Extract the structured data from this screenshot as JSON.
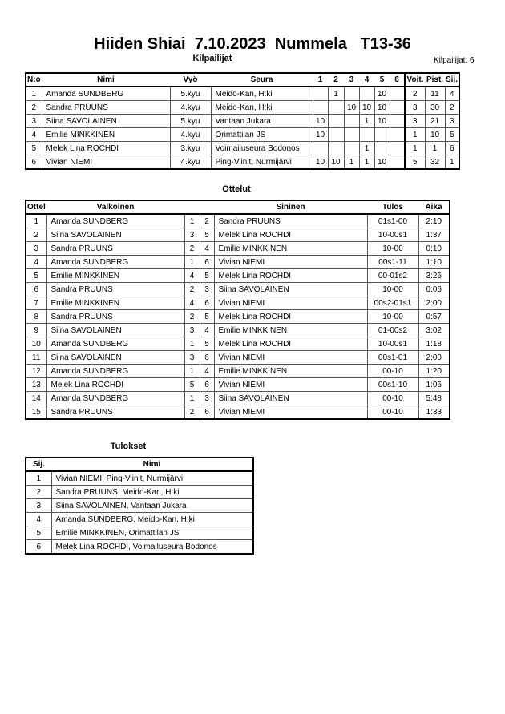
{
  "title": "Hiiden Shiai  7.10.2023  Nummela   T13-36",
  "competitors_section": {
    "heading": "Kilpailijat",
    "count_label": "Kilpailijat: 6",
    "headers": [
      "N:o",
      "Nimi",
      "Vyö",
      "Seura",
      "1",
      "2",
      "3",
      "4",
      "5",
      "6",
      "Voit.",
      "Pist.",
      "Sij."
    ],
    "rows": [
      {
        "no": "1",
        "name": "Amanda SUNDBERG",
        "belt": "5.kyu",
        "club": "Meido-Kan, H:ki",
        "scores": [
          "",
          "1",
          "",
          "",
          "10",
          ""
        ],
        "wins": "2",
        "points": "11",
        "rank": "4"
      },
      {
        "no": "2",
        "name": "Sandra PRUUNS",
        "belt": "4.kyu",
        "club": "Meido-Kan, H:ki",
        "scores": [
          "",
          "",
          "10",
          "10",
          "10",
          ""
        ],
        "wins": "3",
        "points": "30",
        "rank": "2"
      },
      {
        "no": "3",
        "name": "Siina SAVOLAINEN",
        "belt": "5.kyu",
        "club": "Vantaan Jukara",
        "scores": [
          "10",
          "",
          "",
          "1",
          "10",
          ""
        ],
        "wins": "3",
        "points": "21",
        "rank": "3"
      },
      {
        "no": "4",
        "name": "Emilie MINKKINEN",
        "belt": "4.kyu",
        "club": "Orimattilan JS",
        "scores": [
          "10",
          "",
          "",
          "",
          "",
          ""
        ],
        "wins": "1",
        "points": "10",
        "rank": "5"
      },
      {
        "no": "5",
        "name": "Melek Lina ROCHDI",
        "belt": "3.kyu",
        "club": "Voimailuseura Bodonos",
        "scores": [
          "",
          "",
          "",
          "1",
          "",
          ""
        ],
        "wins": "1",
        "points": "1",
        "rank": "6"
      },
      {
        "no": "6",
        "name": "Vivian NIEMI",
        "belt": "4.kyu",
        "club": "Ping-Viinit, Nurmijärvi",
        "scores": [
          "10",
          "10",
          "1",
          "1",
          "10",
          ""
        ],
        "wins": "5",
        "points": "32",
        "rank": "1"
      }
    ]
  },
  "bouts_section": {
    "heading": "Ottelut",
    "headers": {
      "bout": "Ottelu",
      "white": "Valkoinen",
      "blue": "Sininen",
      "result": "Tulos",
      "time": "Aika"
    },
    "rows": [
      {
        "no": "1",
        "white": "Amanda SUNDBERG",
        "wn": "1",
        "bn": "2",
        "blue": "Sandra PRUUNS",
        "result": "01s1-00",
        "time": "2:10"
      },
      {
        "no": "2",
        "white": "Siina SAVOLAINEN",
        "wn": "3",
        "bn": "5",
        "blue": "Melek Lina ROCHDI",
        "result": "10-00s1",
        "time": "1:37"
      },
      {
        "no": "3",
        "white": "Sandra PRUUNS",
        "wn": "2",
        "bn": "4",
        "blue": "Emilie MINKKINEN",
        "result": "10-00",
        "time": "0:10"
      },
      {
        "no": "4",
        "white": "Amanda SUNDBERG",
        "wn": "1",
        "bn": "6",
        "blue": "Vivian NIEMI",
        "result": "00s1-11",
        "time": "1:10"
      },
      {
        "no": "5",
        "white": "Emilie MINKKINEN",
        "wn": "4",
        "bn": "5",
        "blue": "Melek Lina ROCHDI",
        "result": "00-01s2",
        "time": "3:26"
      },
      {
        "no": "6",
        "white": "Sandra PRUUNS",
        "wn": "2",
        "bn": "3",
        "blue": "Siina SAVOLAINEN",
        "result": "10-00",
        "time": "0:06"
      },
      {
        "no": "7",
        "white": "Emilie MINKKINEN",
        "wn": "4",
        "bn": "6",
        "blue": "Vivian NIEMI",
        "result": "00s2-01s1",
        "time": "2:00"
      },
      {
        "no": "8",
        "white": "Sandra PRUUNS",
        "wn": "2",
        "bn": "5",
        "blue": "Melek Lina ROCHDI",
        "result": "10-00",
        "time": "0:57"
      },
      {
        "no": "9",
        "white": "Siina SAVOLAINEN",
        "wn": "3",
        "bn": "4",
        "blue": "Emilie MINKKINEN",
        "result": "01-00s2",
        "time": "3:02"
      },
      {
        "no": "10",
        "white": "Amanda SUNDBERG",
        "wn": "1",
        "bn": "5",
        "blue": "Melek Lina ROCHDI",
        "result": "10-00s1",
        "time": "1:18"
      },
      {
        "no": "11",
        "white": "Siina SAVOLAINEN",
        "wn": "3",
        "bn": "6",
        "blue": "Vivian NIEMI",
        "result": "00s1-01",
        "time": "2:00"
      },
      {
        "no": "12",
        "white": "Amanda SUNDBERG",
        "wn": "1",
        "bn": "4",
        "blue": "Emilie MINKKINEN",
        "result": "00-10",
        "time": "1:20"
      },
      {
        "no": "13",
        "white": "Melek Lina ROCHDI",
        "wn": "5",
        "bn": "6",
        "blue": "Vivian NIEMI",
        "result": "00s1-10",
        "time": "1:06"
      },
      {
        "no": "14",
        "white": "Amanda SUNDBERG",
        "wn": "1",
        "bn": "3",
        "blue": "Siina SAVOLAINEN",
        "result": "00-10",
        "time": "5:48"
      },
      {
        "no": "15",
        "white": "Sandra PRUUNS",
        "wn": "2",
        "bn": "6",
        "blue": "Vivian NIEMI",
        "result": "00-10",
        "time": "1:33"
      }
    ]
  },
  "results_section": {
    "heading": "Tulokset",
    "headers": {
      "rank": "Sij.",
      "name": "Nimi"
    },
    "rows": [
      {
        "rank": "1",
        "name": "Vivian NIEMI, Ping-Viinit, Nurmijärvi"
      },
      {
        "rank": "2",
        "name": "Sandra PRUUNS, Meido-Kan, H:ki"
      },
      {
        "rank": "3",
        "name": "Siina SAVOLAINEN, Vantaan Jukara"
      },
      {
        "rank": "4",
        "name": "Amanda SUNDBERG, Meido-Kan, H:ki"
      },
      {
        "rank": "5",
        "name": "Emilie MINKKINEN, Orimattilan JS"
      },
      {
        "rank": "6",
        "name": "Melek Lina ROCHDI, Voimailuseura Bodonos"
      }
    ]
  }
}
